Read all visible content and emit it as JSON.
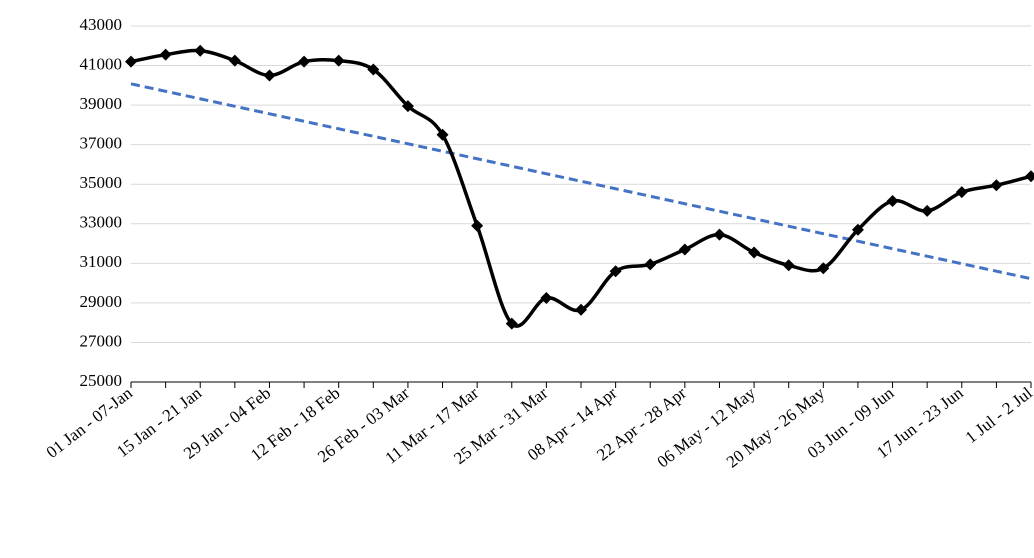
{
  "chart_data": {
    "type": "line",
    "categories": [
      "01 Jan - 07-Jan",
      null,
      "15 Jan - 21 Jan",
      null,
      "29 Jan - 04 Feb",
      null,
      "12 Feb - 18 Feb",
      null,
      "26 Feb - 03 Mar",
      null,
      "11 Mar - 17 Mar",
      null,
      "25 Mar - 31 Mar",
      null,
      "08 Apr - 14 Apr",
      null,
      "22 Apr - 28 Apr",
      null,
      "06 May - 12 May",
      null,
      "20 May - 26 May",
      null,
      "03 Jun - 09 Jun",
      null,
      "17 Jun - 23 Jun",
      null,
      "1 Jul - 2 Jul"
    ],
    "values": [
      41200,
      41550,
      41750,
      41250,
      40500,
      41200,
      41250,
      40800,
      38950,
      37500,
      32900,
      27950,
      29250,
      28650,
      30600,
      30950,
      31700,
      32450,
      31550,
      30900,
      30750,
      32700,
      34150,
      33650,
      34600,
      34950,
      35400
    ],
    "color": "#000000",
    "smooth": true,
    "marker": "diamond",
    "trendline": {
      "kind": "linear",
      "color": "#4472c4",
      "dashed": true
    },
    "ylim": [
      25000,
      43000
    ],
    "yticks": [
      25000,
      27000,
      29000,
      31000,
      33000,
      35000,
      37000,
      39000,
      41000,
      43000
    ],
    "grid": true
  }
}
